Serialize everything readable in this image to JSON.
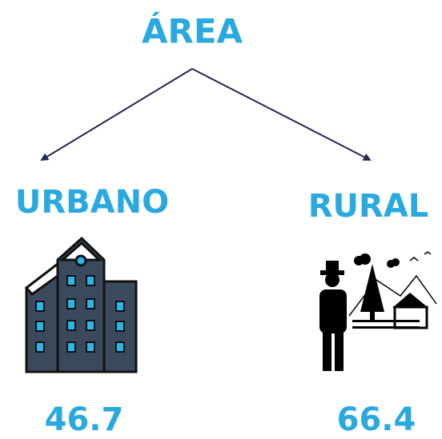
{
  "title": "ÁREA",
  "branches": [
    {
      "label": "URBANO",
      "value": 46.7
    },
    {
      "label": "RURAL",
      "value": 66.4
    }
  ]
}
